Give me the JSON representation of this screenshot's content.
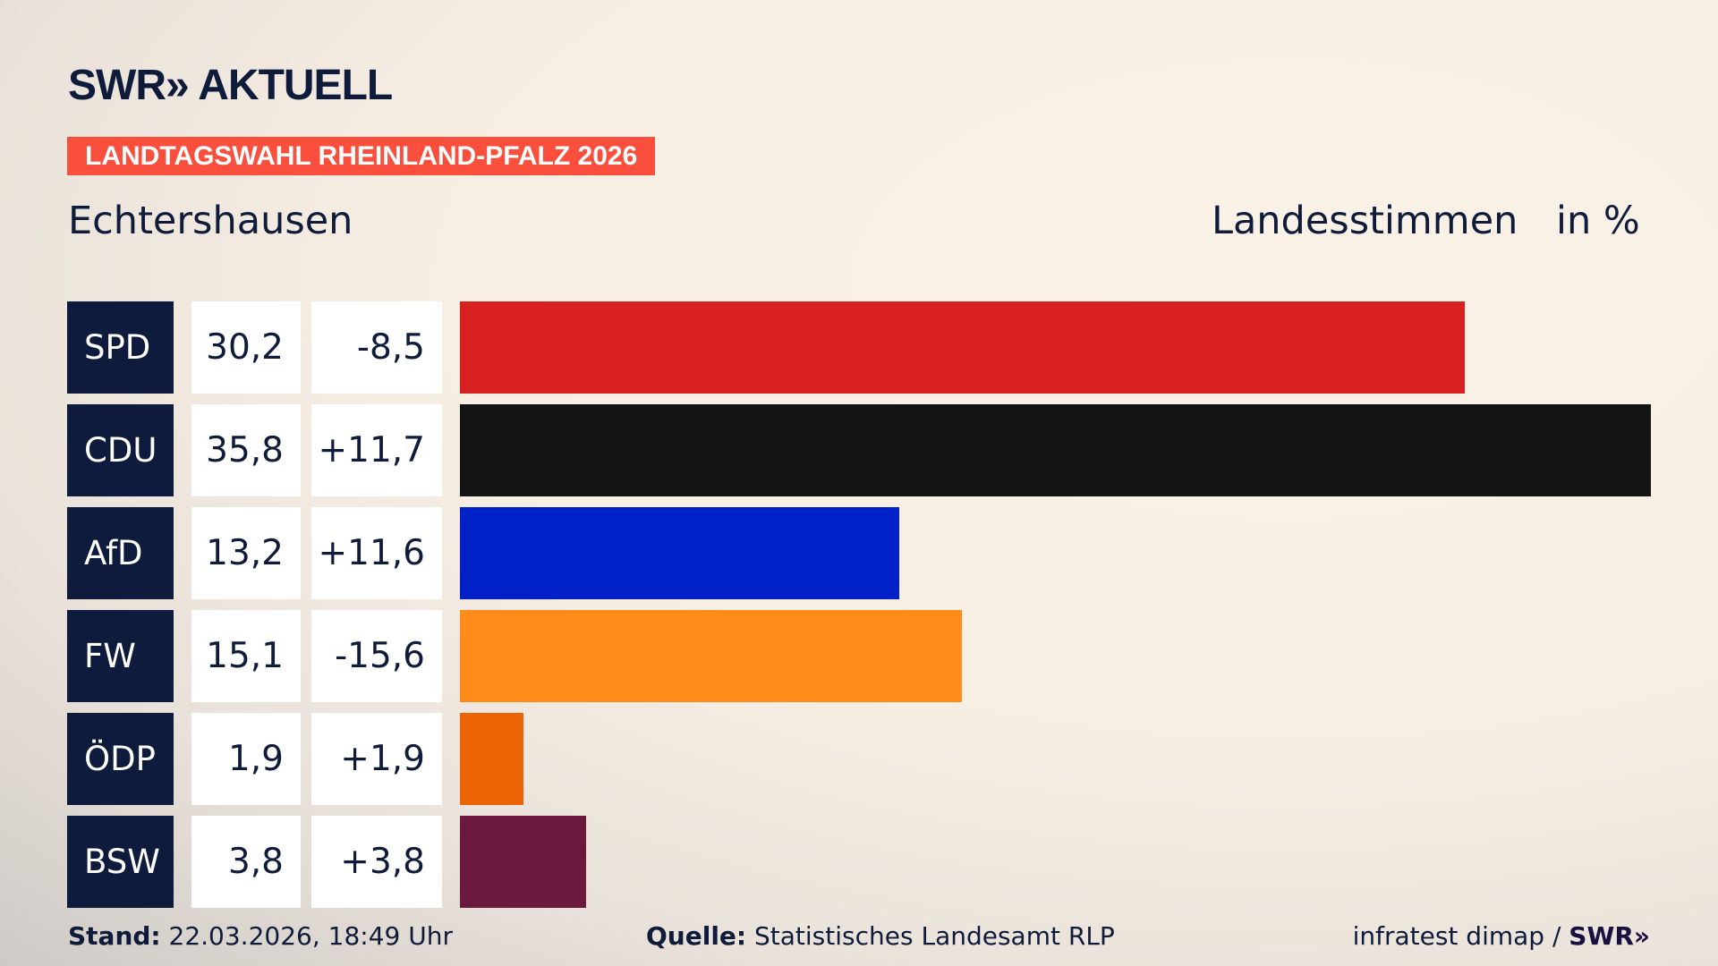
{
  "logo": {
    "text": "SWR» AKTUELL"
  },
  "banner": "LANDTAGSWAHL RHEINLAND-PFALZ 2026",
  "header": {
    "location": "Echtershausen",
    "measure": "Landesstimmen",
    "unit": "in %"
  },
  "chart_data": {
    "type": "bar",
    "orientation": "horizontal",
    "categories": [
      "SPD",
      "CDU",
      "AfD",
      "FW",
      "ÖDP",
      "BSW"
    ],
    "values": [
      30.2,
      35.8,
      13.2,
      15.1,
      1.9,
      3.8
    ],
    "value_labels": [
      "30,2",
      "35,8",
      "13,2",
      "15,1",
      "1,9",
      "3,8"
    ],
    "diff_labels": [
      "-8,5",
      "+11,7",
      "+11,6",
      "-15,6",
      "+1,9",
      "+3,8"
    ],
    "colors": [
      "#d82020",
      "#141414",
      "#0021c8",
      "#ff8c1a",
      "#eb6405",
      "#6b1a3d"
    ],
    "xlim": [
      0,
      35.8
    ],
    "grid": false
  },
  "footer": {
    "stand_label": "Stand:",
    "stand_value": " 22.03.2026, 18:49 Uhr",
    "source_label": "Quelle:",
    "source_value": " Statistisches Landesamt RLP",
    "credit": "infratest dimap / ",
    "credit_logo": "SWR»"
  }
}
